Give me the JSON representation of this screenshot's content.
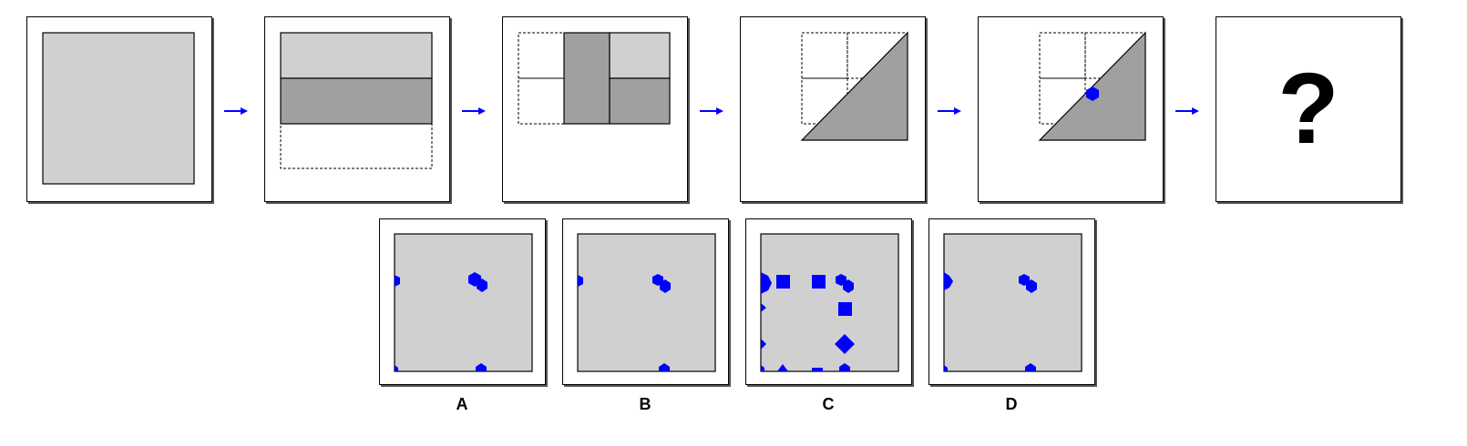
{
  "colors": {
    "paper": "#d0d0d0",
    "fold": "#a0a0a0",
    "hole": "#0000ff",
    "arrow": "#0000ff",
    "outline": "#000000"
  },
  "steps": [
    {
      "name": "full-paper"
    },
    {
      "name": "fold-bottom-up"
    },
    {
      "name": "fold-left-right"
    },
    {
      "name": "fold-diagonal"
    },
    {
      "name": "punch-hole"
    },
    {
      "name": "unknown-result",
      "symbol": "?"
    }
  ],
  "options": [
    {
      "label": "A"
    },
    {
      "label": "B"
    },
    {
      "label": "C"
    },
    {
      "label": "D"
    }
  ]
}
